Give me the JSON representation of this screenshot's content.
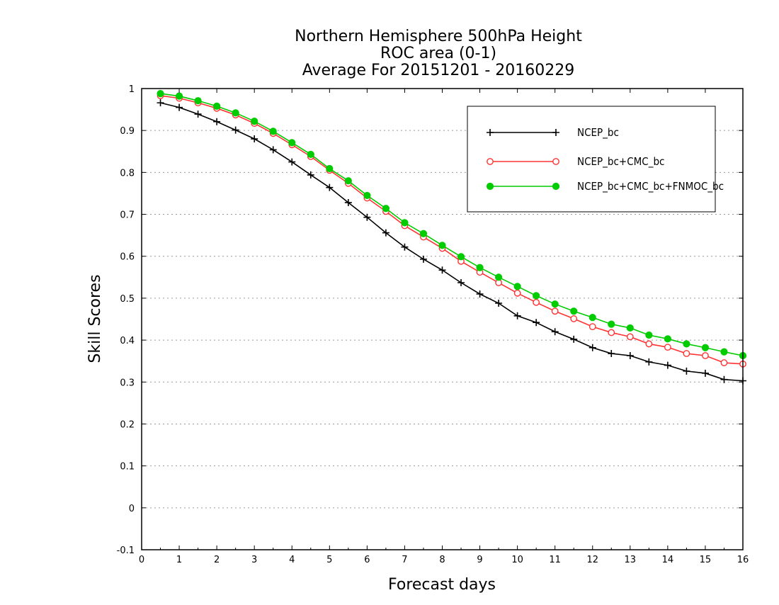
{
  "chart_data": {
    "type": "line",
    "title_lines": [
      "Northern Hemisphere 500hPa Height",
      "ROC area (0-1)",
      "Average For 20151201 - 20160229"
    ],
    "xlabel": "Forecast days",
    "ylabel": "Skill Scores",
    "xlim": [
      0,
      16
    ],
    "ylim": [
      -0.1,
      1
    ],
    "x_ticks": [
      0,
      1,
      2,
      3,
      4,
      5,
      6,
      7,
      8,
      9,
      10,
      11,
      12,
      13,
      14,
      15,
      16
    ],
    "y_ticks": [
      -0.1,
      0,
      0.1,
      0.2,
      0.3,
      0.4,
      0.5,
      0.6,
      0.7,
      0.8,
      0.9,
      1
    ],
    "y_tick_labels": [
      "-0.1",
      "0",
      "0.1",
      "0.2",
      "0.3",
      "0.4",
      "0.5",
      "0.6",
      "0.7",
      "0.8",
      "0.9",
      "1"
    ],
    "grid": "horizontal dotted",
    "legend_position": "top-right",
    "x": [
      0.5,
      1,
      1.5,
      2,
      2.5,
      3,
      3.5,
      4,
      4.5,
      5,
      5.5,
      6,
      6.5,
      7,
      7.5,
      8,
      8.5,
      9,
      9.5,
      10,
      10.5,
      11,
      11.5,
      12,
      12.5,
      13,
      13.5,
      14,
      14.5,
      15,
      15.5,
      16
    ],
    "series": [
      {
        "name": "NCEP_bc",
        "color": "#000000",
        "marker": "plus",
        "values": [
          0.966,
          0.955,
          0.939,
          0.921,
          0.901,
          0.88,
          0.854,
          0.825,
          0.794,
          0.764,
          0.728,
          0.693,
          0.656,
          0.622,
          0.593,
          0.567,
          0.537,
          0.51,
          0.488,
          0.458,
          0.442,
          0.42,
          0.402,
          0.382,
          0.368,
          0.363,
          0.348,
          0.34,
          0.326,
          0.321,
          0.306,
          0.303
        ]
      },
      {
        "name": "NCEP_bc+CMC_bc",
        "color": "#ff3333",
        "marker": "open-circle",
        "values": [
          0.983,
          0.977,
          0.966,
          0.953,
          0.937,
          0.917,
          0.893,
          0.866,
          0.838,
          0.805,
          0.774,
          0.739,
          0.707,
          0.673,
          0.646,
          0.619,
          0.588,
          0.562,
          0.537,
          0.512,
          0.49,
          0.469,
          0.451,
          0.432,
          0.418,
          0.408,
          0.391,
          0.383,
          0.368,
          0.363,
          0.346,
          0.343
        ]
      },
      {
        "name": "NCEP_bc+CMC_bc+FNMOC_bc",
        "color": "#00cc00",
        "marker": "filled-circle",
        "values": [
          0.988,
          0.982,
          0.971,
          0.958,
          0.942,
          0.922,
          0.898,
          0.871,
          0.843,
          0.809,
          0.78,
          0.745,
          0.714,
          0.68,
          0.654,
          0.626,
          0.599,
          0.573,
          0.55,
          0.528,
          0.506,
          0.486,
          0.469,
          0.454,
          0.438,
          0.429,
          0.412,
          0.403,
          0.391,
          0.382,
          0.372,
          0.363
        ]
      }
    ]
  }
}
